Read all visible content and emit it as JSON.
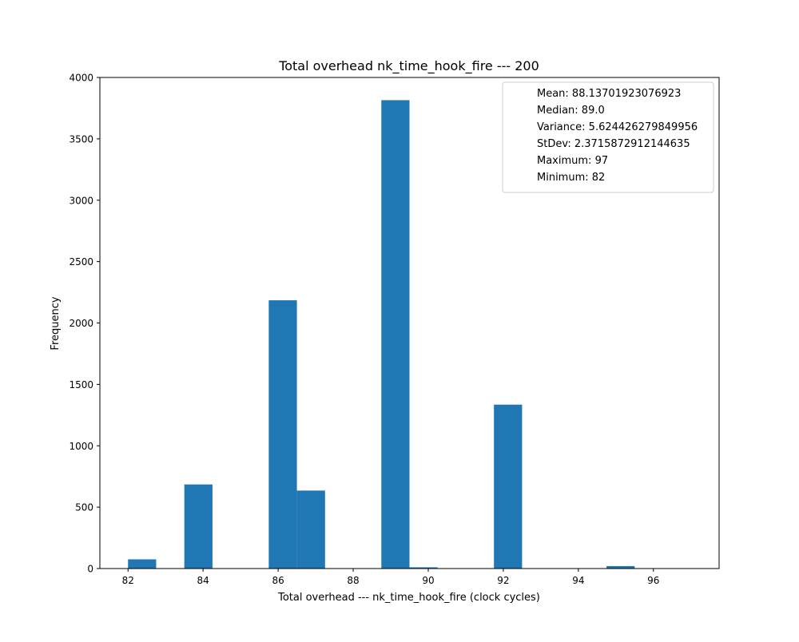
{
  "chart_data": {
    "type": "bar",
    "title": "Total overhead nk_time_hook_fire --- 200",
    "xlabel": "Total overhead --- nk_time_hook_fire (clock cycles)",
    "ylabel": "Frequency",
    "xlim": [
      81.25,
      97.75
    ],
    "ylim": [
      0,
      4000
    ],
    "x_ticks": [
      82,
      84,
      86,
      88,
      90,
      92,
      94,
      96
    ],
    "y_ticks": [
      0,
      500,
      1000,
      1500,
      2000,
      2500,
      3000,
      3500,
      4000
    ],
    "bin_width": 0.75,
    "bins": [
      {
        "start": 82.0,
        "count": 75
      },
      {
        "start": 82.75,
        "count": 0
      },
      {
        "start": 83.5,
        "count": 685
      },
      {
        "start": 84.25,
        "count": 0
      },
      {
        "start": 85.0,
        "count": 0
      },
      {
        "start": 85.75,
        "count": 2185
      },
      {
        "start": 86.5,
        "count": 635
      },
      {
        "start": 87.25,
        "count": 0
      },
      {
        "start": 88.0,
        "count": 0
      },
      {
        "start": 88.75,
        "count": 3815
      },
      {
        "start": 89.5,
        "count": 10
      },
      {
        "start": 90.25,
        "count": 0
      },
      {
        "start": 91.0,
        "count": 0
      },
      {
        "start": 91.75,
        "count": 1335
      },
      {
        "start": 92.5,
        "count": 0
      },
      {
        "start": 93.25,
        "count": 0
      },
      {
        "start": 94.0,
        "count": 0
      },
      {
        "start": 94.75,
        "count": 20
      },
      {
        "start": 95.5,
        "count": 0
      },
      {
        "start": 96.25,
        "count": 0
      }
    ],
    "bar_color": "#1f77b4",
    "grid": false,
    "legend_position": "top-right",
    "legend_lines": [
      "Mean: 88.13701923076923",
      "Median: 89.0",
      "Variance: 5.624426279849956",
      "StDev: 2.3715872912144635",
      "Maximum: 97",
      "Minimum: 82"
    ]
  }
}
